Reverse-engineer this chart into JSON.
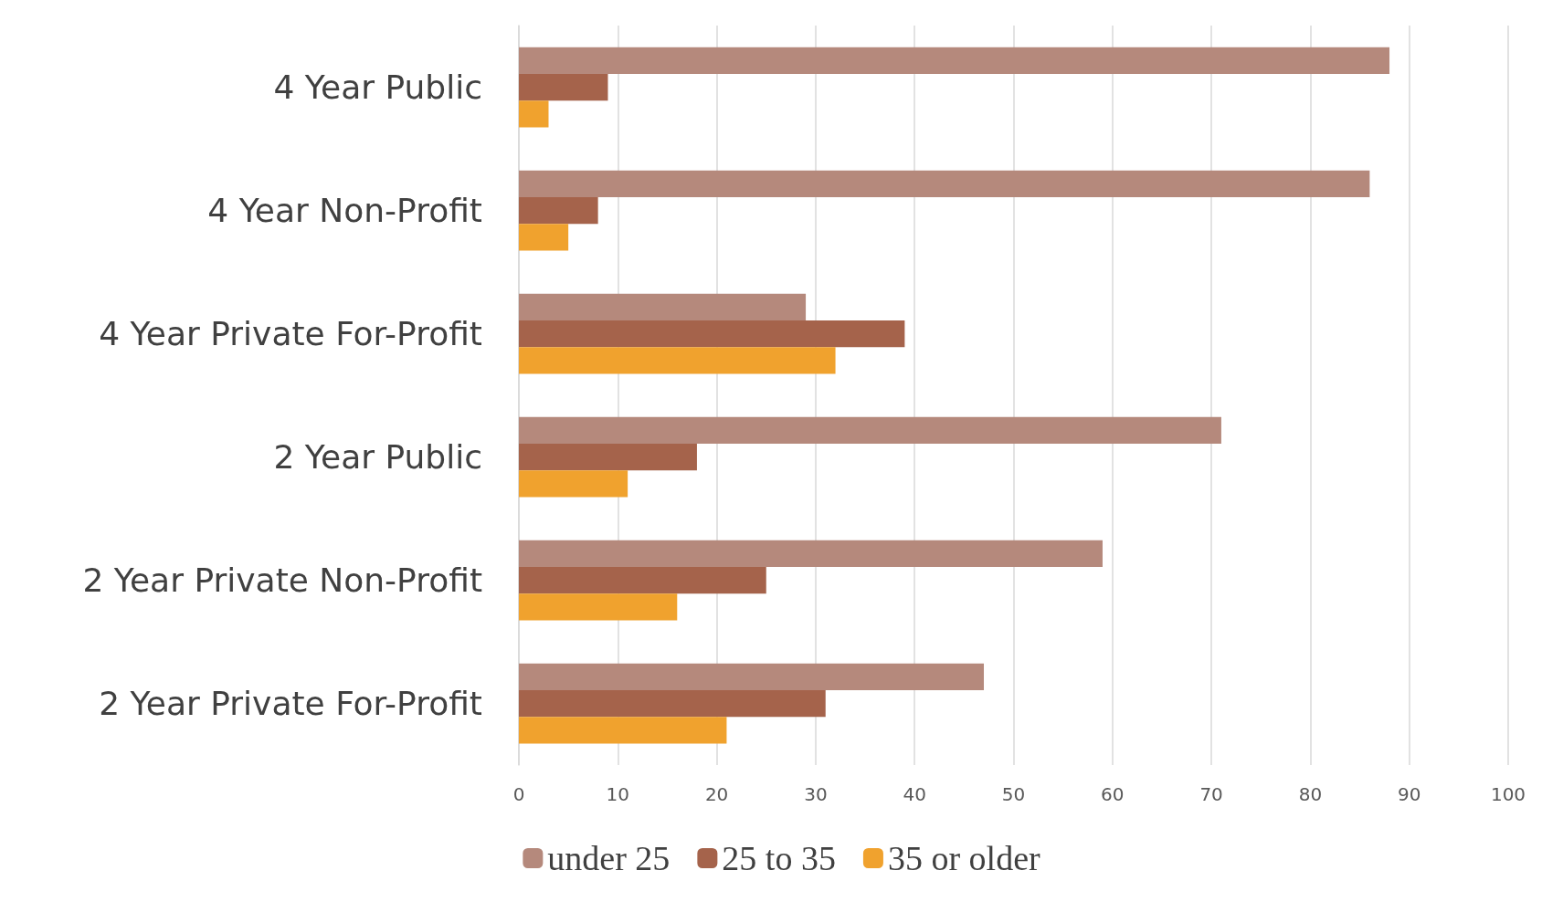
{
  "chart_data": {
    "type": "bar",
    "orientation": "horizontal",
    "categories": [
      "4 Year Public",
      "4 Year Non-Profit",
      "4 Year Private For-Profit",
      "2 Year Public",
      "2 Year Private Non-Profit",
      "2 Year Private For-Profit"
    ],
    "series": [
      {
        "name": "under 25",
        "color": "#b5897c",
        "values": [
          88,
          86,
          29,
          71,
          59,
          47
        ]
      },
      {
        "name": "25 to 35",
        "color": "#a5634b",
        "values": [
          9,
          8,
          39,
          18,
          25,
          31
        ]
      },
      {
        "name": "35 or older",
        "color": "#f0a22e",
        "values": [
          3,
          5,
          32,
          11,
          16,
          21
        ]
      }
    ],
    "xlim": [
      0,
      100
    ],
    "xticks": [
      0,
      10,
      20,
      30,
      40,
      50,
      60,
      70,
      80,
      90,
      100
    ],
    "grid": "x",
    "legend": "bottom"
  }
}
